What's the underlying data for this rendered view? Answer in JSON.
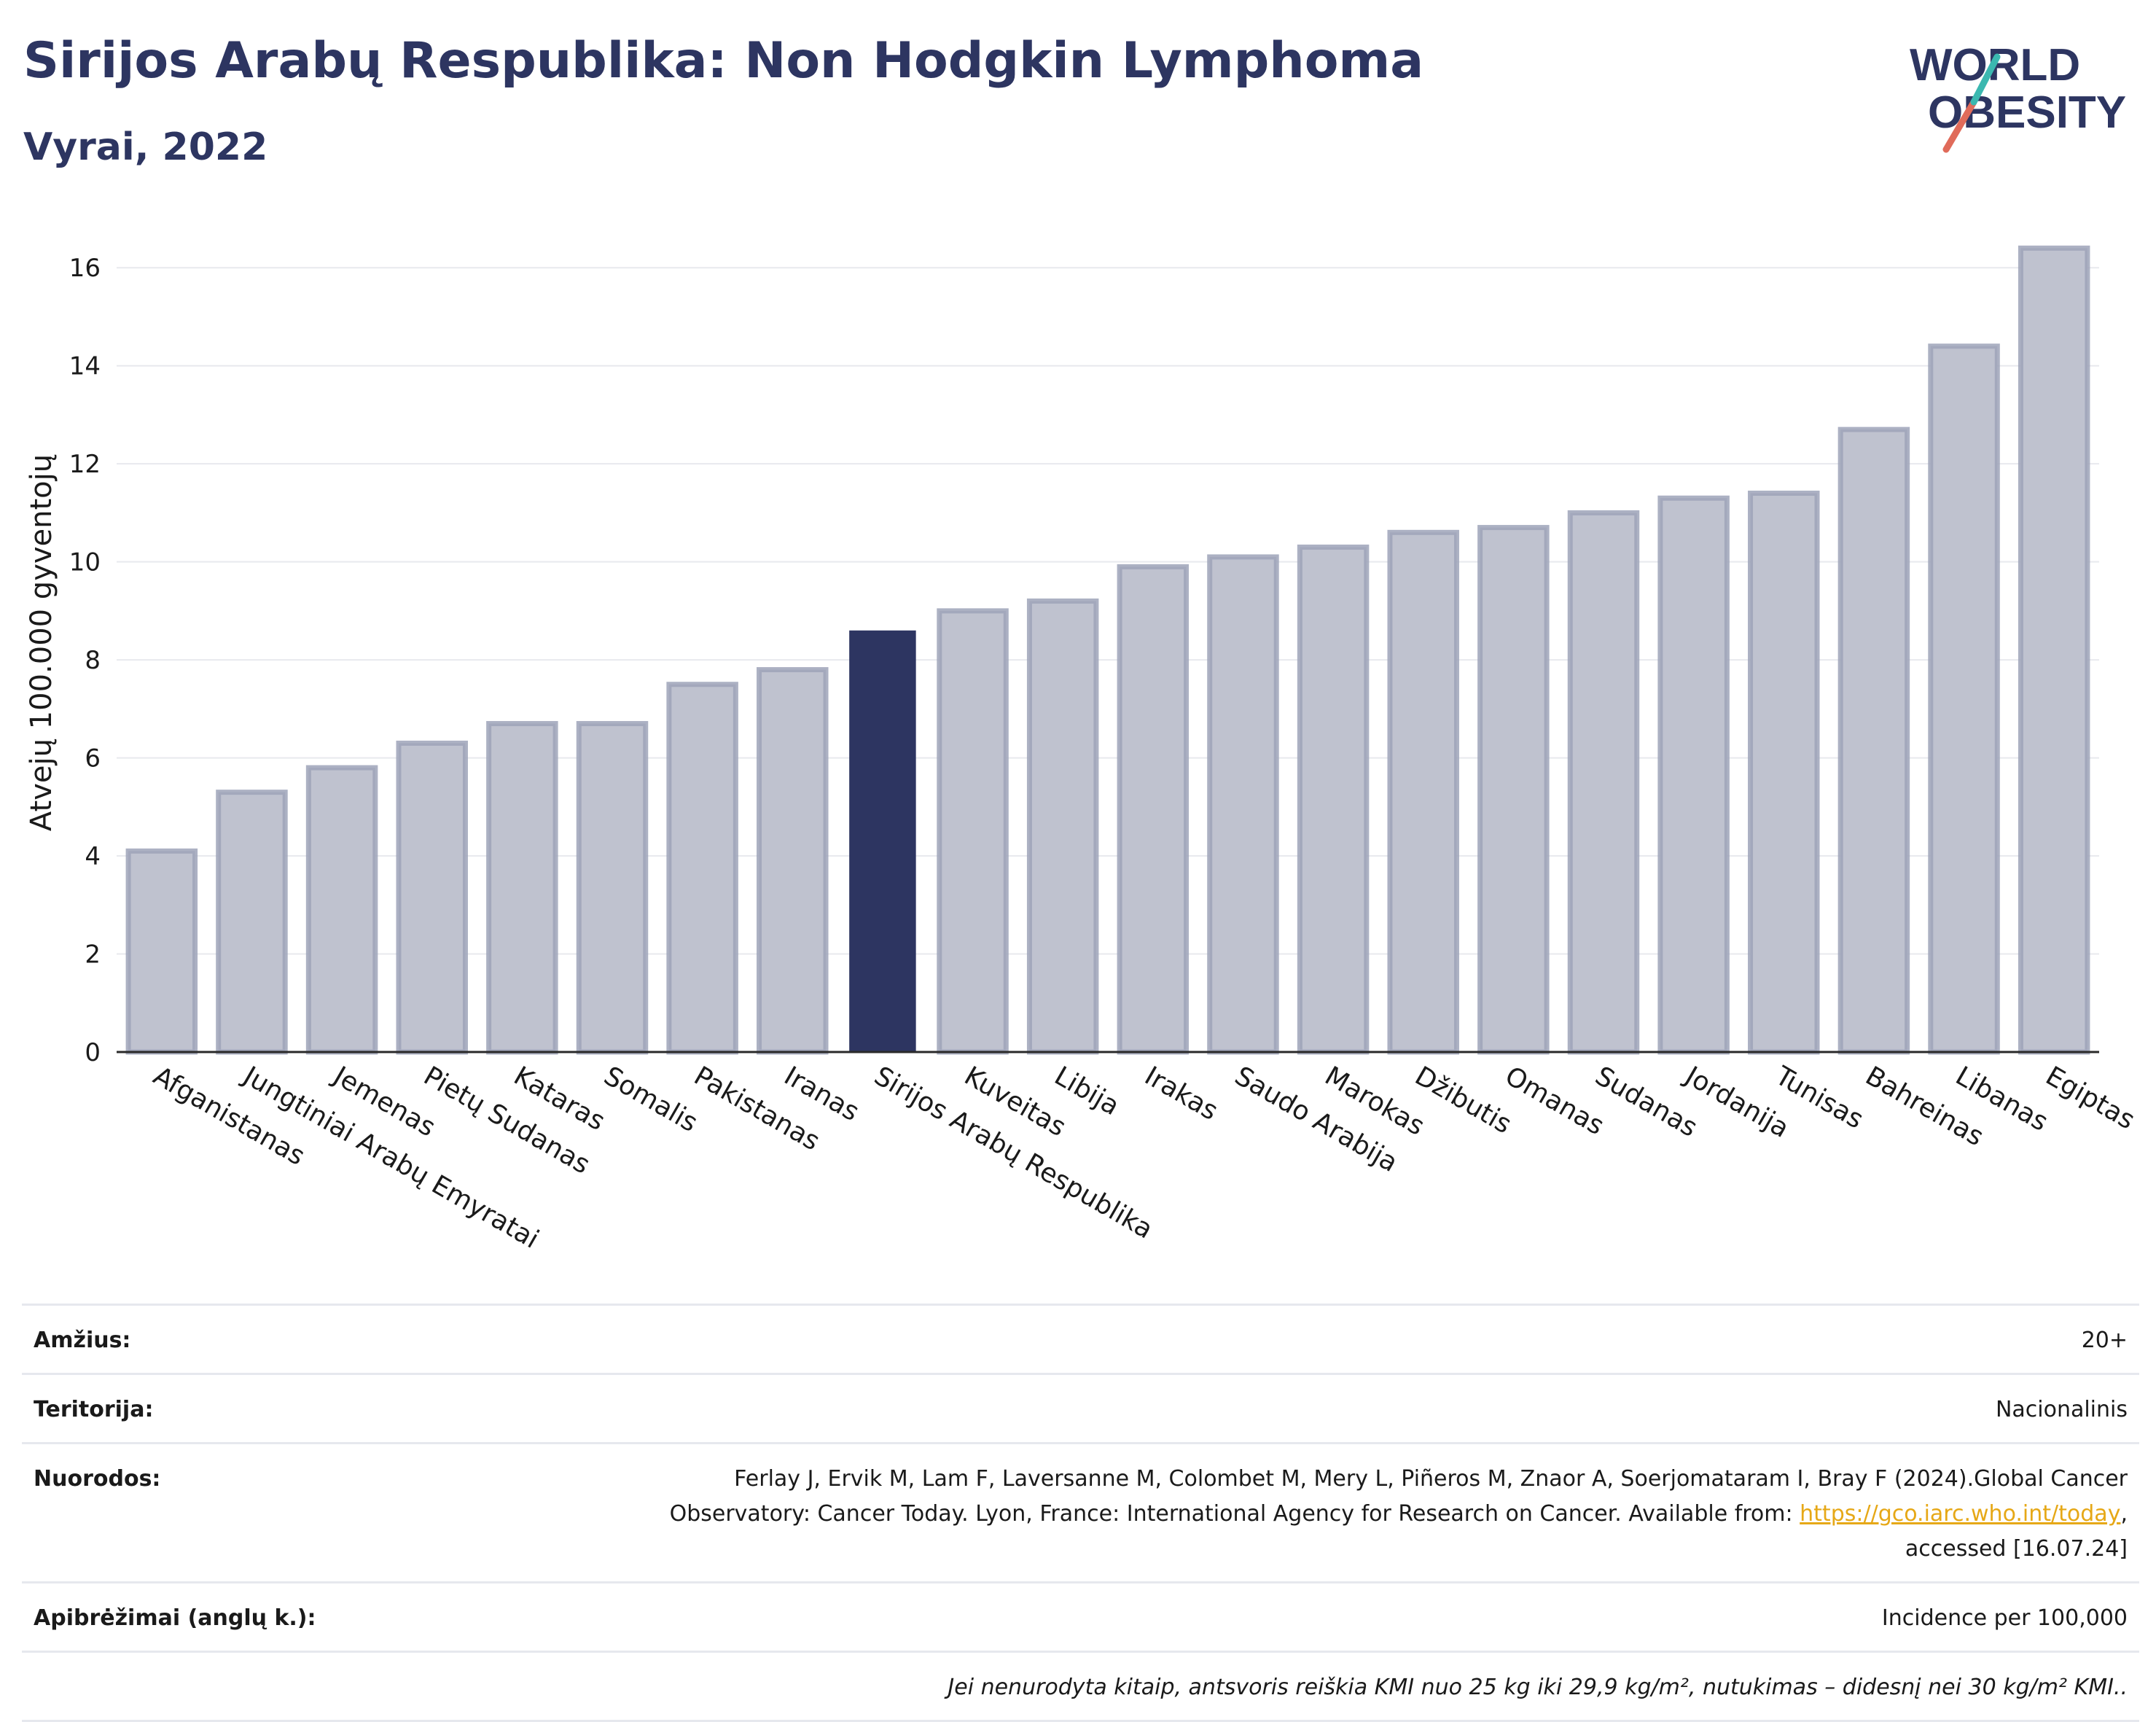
{
  "header": {
    "title": "Sirijos Arabų Respublika: Non Hodgkin Lymphoma",
    "subtitle": "Vyrai, 2022"
  },
  "logo": {
    "line1": "WORLD",
    "line2": "OBESITY"
  },
  "colors": {
    "highlight": "#2d3561",
    "bar": "#bfc2cf",
    "bar_edge": "#9ea3b8",
    "title": "#2d3561"
  },
  "chart_data": {
    "type": "bar",
    "ylabel": "Atvejų 100.000 gyventojų",
    "xlabel": "",
    "ylim": [
      0,
      17
    ],
    "yticks": [
      0,
      2,
      4,
      6,
      8,
      10,
      12,
      14,
      16
    ],
    "grid": true,
    "highlight": "Sirijos Arabų Respublika",
    "categories": [
      "Afganistanas",
      "Jungtiniai Arabų Emyratai",
      "Jemenas",
      "Pietų Sudanas",
      "Kataras",
      "Somalis",
      "Pakistanas",
      "Iranas",
      "Sirijos Arabų Respublika",
      "Kuveitas",
      "Libija",
      "Irakas",
      "Saudo Arabija",
      "Marokas",
      "Džibutis",
      "Omanas",
      "Sudanas",
      "Jordanija",
      "Tunisas",
      "Bahreinas",
      "Libanas",
      "Egiptas"
    ],
    "values": [
      4.1,
      5.3,
      5.8,
      6.3,
      6.7,
      6.7,
      7.5,
      7.8,
      8.6,
      9.0,
      9.2,
      9.9,
      10.1,
      10.3,
      10.6,
      10.7,
      11.0,
      11.3,
      11.4,
      12.7,
      14.4,
      16.4
    ]
  },
  "footer": {
    "age_label": "Amžius:",
    "age_value": "20+",
    "territory_label": "Teritorija:",
    "territory_value": "Nacionalinis",
    "refs_label": "Nuorodos:",
    "refs_text_1": "Ferlay J, Ervik M, Lam F, Laversanne M, Colombet M, Mery L, Piñeros M, Znaor A, Soerjomataram I, Bray F (2024).Global Cancer",
    "refs_text_2": "Observatory: Cancer Today. Lyon, France: International Agency for Research on Cancer. Available from: ",
    "refs_link": "https://gco.iarc.who.int/today",
    "refs_text_3": ",",
    "refs_text_4": "accessed [16.07.24]",
    "defs_label": "Apibrėžimai (anglų k.):",
    "defs_value": "Incidence per 100,000",
    "note": "Jei nenurodyta kitaip, antsvoris reiškia KMI nuo 25 kg iki 29,9 kg/m², nutukimas – didesnį nei 30 kg/m² KMI.."
  }
}
